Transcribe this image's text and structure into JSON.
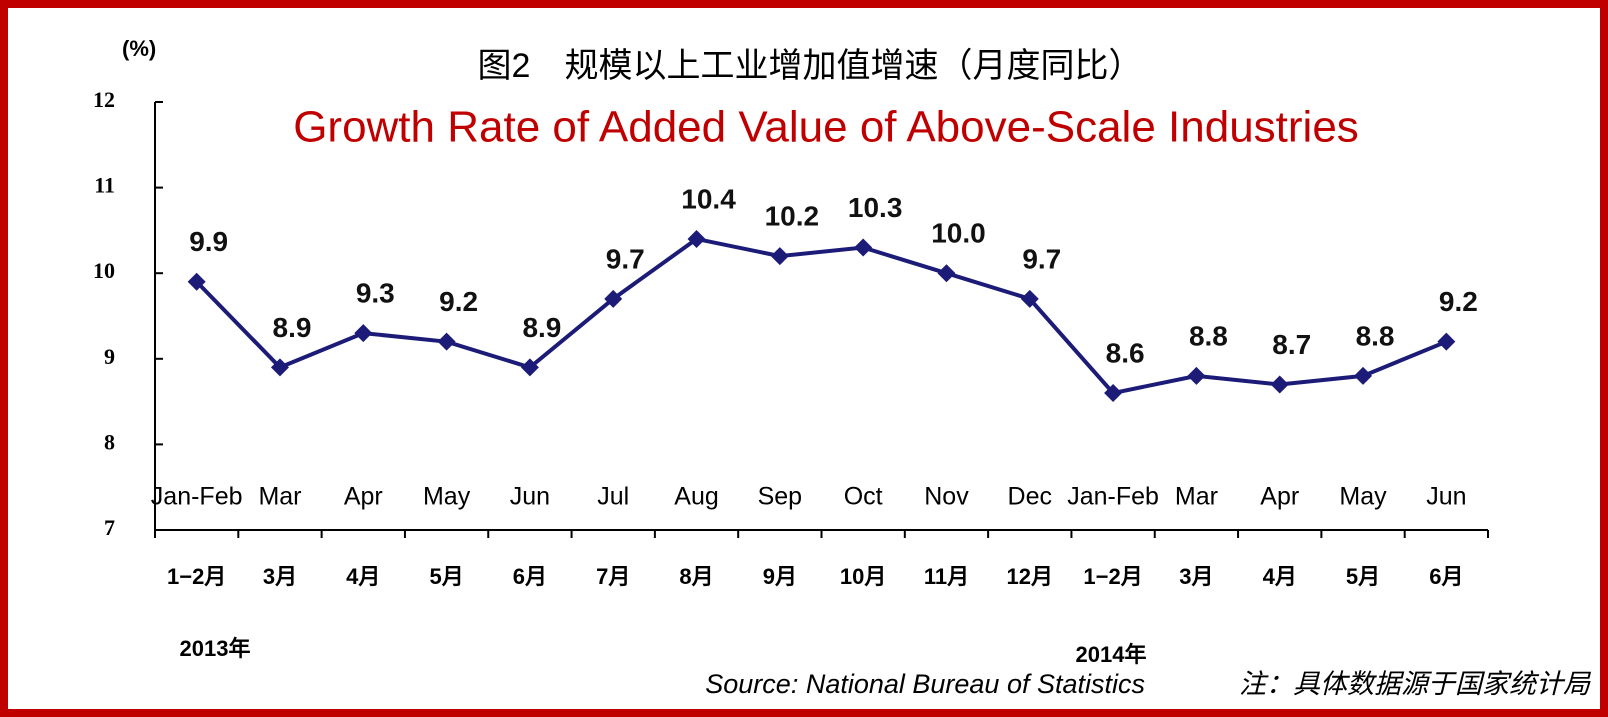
{
  "chart_data": {
    "type": "line",
    "unit_label": "(%)",
    "title": "图2　规模以上工业增加值增速（月度同比）",
    "subtitle": "Growth Rate of Added Value of Above-Scale Industries",
    "categories": [
      "Jan-Feb",
      "Mar",
      "Apr",
      "May",
      "Jun",
      "Jul",
      "Aug",
      "Sep",
      "Oct",
      "Nov",
      "Dec",
      "Jan-Feb",
      "Mar",
      "Apr",
      "May",
      "Jun"
    ],
    "categories_cn": [
      "1−2月",
      "3月",
      "4月",
      "5月",
      "6月",
      "7月",
      "8月",
      "9月",
      "10月",
      "11月",
      "12月",
      "1−2月",
      "3月",
      "4月",
      "5月",
      "6月"
    ],
    "year_labels": [
      "2013年",
      "2014年"
    ],
    "values": [
      9.9,
      8.9,
      9.3,
      9.2,
      8.9,
      9.7,
      10.4,
      10.2,
      10.3,
      10.0,
      9.7,
      8.6,
      8.8,
      8.7,
      8.8,
      9.2
    ],
    "value_labels": [
      "9.9",
      "8.9",
      "9.3",
      "9.2",
      "8.9",
      "9.7",
      "10.4",
      "10.2",
      "10.3",
      "10.0",
      "9.7",
      "8.6",
      "8.8",
      "8.7",
      "8.8",
      "9.2"
    ],
    "color": "#1c1c78",
    "ylim": [
      7,
      12
    ],
    "yticks": [
      7,
      8,
      9,
      10,
      11,
      12
    ],
    "source": "Source: National Bureau of Statistics",
    "note": "注：具体数据源于国家统计局"
  }
}
